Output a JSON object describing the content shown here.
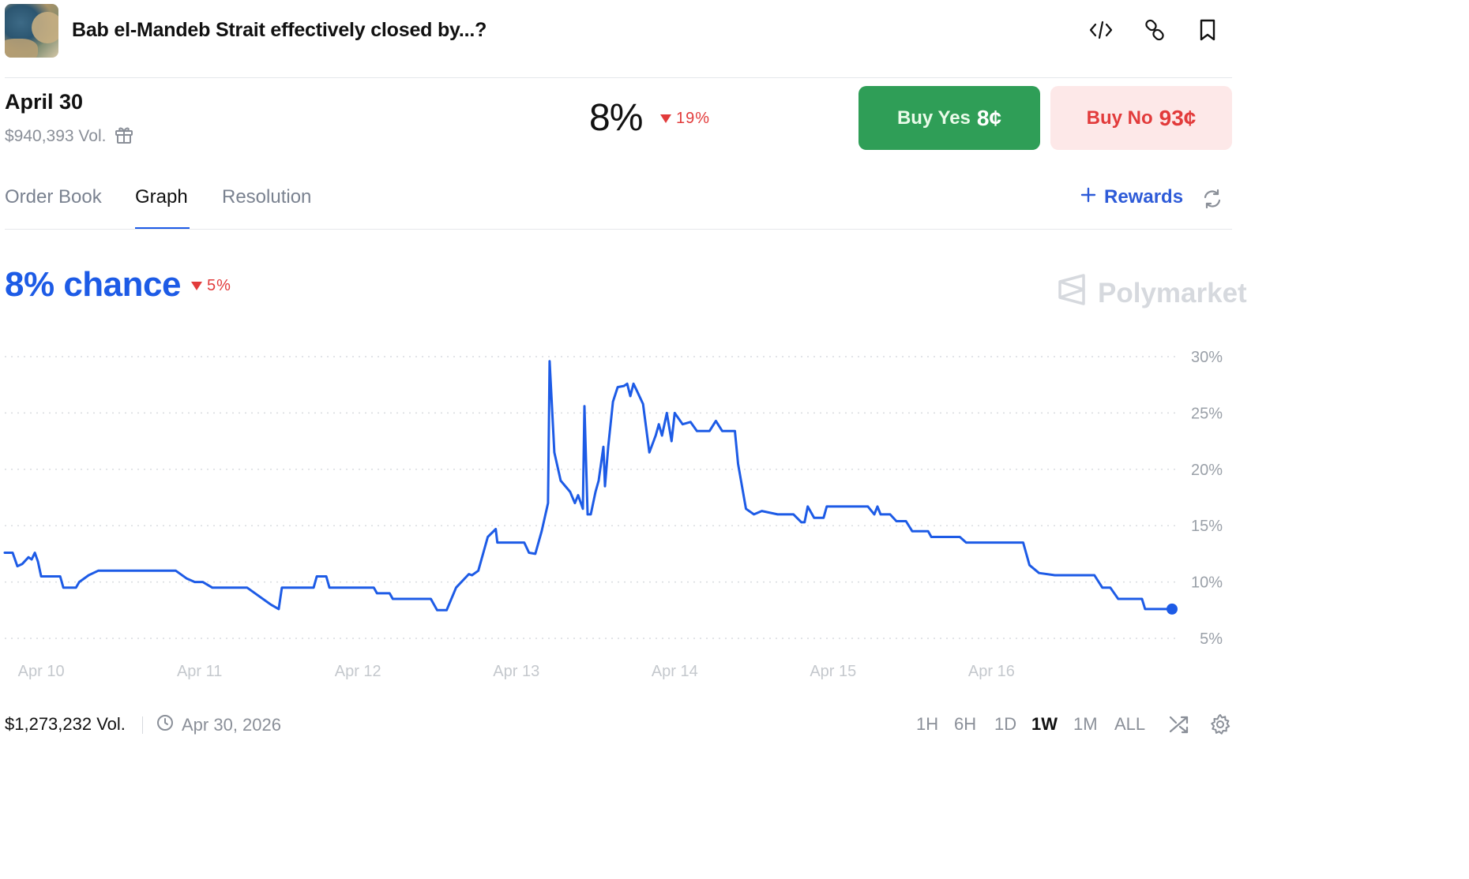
{
  "header": {
    "title": "Bab el-Mandeb Strait effectively closed by...?",
    "icons": [
      "embed-code-icon",
      "link-icon",
      "bookmark-icon"
    ]
  },
  "market": {
    "date": "April 30",
    "volume": "$940,393 Vol.",
    "probability": "8%",
    "change": "19%",
    "buy_yes_label": "Buy Yes",
    "buy_yes_price": "8¢",
    "buy_no_label": "Buy No",
    "buy_no_price": "93¢"
  },
  "tabs": [
    {
      "label": "Order Book",
      "active": false
    },
    {
      "label": "Graph",
      "active": true
    },
    {
      "label": "Resolution",
      "active": false
    }
  ],
  "rewards_label": "Rewards",
  "chart_header": {
    "chance": "8% chance",
    "change": "5%",
    "brand": "Polymarket"
  },
  "colors": {
    "accent": "#1d5be6",
    "yes": "#2f9e57",
    "no_bg": "#fde8e8",
    "down": "#e23b3b"
  },
  "chart_data": {
    "type": "line",
    "title": "",
    "xlabel": "",
    "ylabel": "",
    "yticks": [
      "30%",
      "25%",
      "20%",
      "15%",
      "10%",
      "5%"
    ],
    "ytick_values": [
      30,
      25,
      20,
      15,
      10,
      5
    ],
    "xticks": [
      "Apr 10",
      "Apr 11",
      "Apr 12",
      "Apr 13",
      "Apr 14",
      "Apr 15",
      "Apr 16"
    ],
    "xtick_values": [
      10,
      11,
      12,
      13,
      14,
      15,
      16
    ],
    "ylim": [
      4,
      30.5
    ],
    "xlim": [
      9.77,
      17.17
    ],
    "grid": true,
    "series": [
      {
        "points": [
          [
            9.77,
            12.6
          ],
          [
            9.82,
            12.6
          ],
          [
            9.85,
            11.4
          ],
          [
            9.88,
            11.6
          ],
          [
            9.92,
            12.2
          ],
          [
            9.94,
            12.0
          ],
          [
            9.96,
            12.6
          ],
          [
            9.98,
            11.8
          ],
          [
            10.0,
            10.5
          ],
          [
            10.1,
            10.5
          ],
          [
            10.12,
            10.5
          ],
          [
            10.14,
            9.5
          ],
          [
            10.22,
            9.5
          ],
          [
            10.24,
            10.0
          ],
          [
            10.3,
            10.6
          ],
          [
            10.36,
            11.0
          ],
          [
            10.45,
            11.0
          ],
          [
            10.6,
            11.0
          ],
          [
            10.8,
            11.0
          ],
          [
            10.85,
            11.0
          ],
          [
            10.92,
            10.3
          ],
          [
            10.97,
            10.0
          ],
          [
            11.02,
            10.0
          ],
          [
            11.08,
            9.5
          ],
          [
            11.3,
            9.5
          ],
          [
            11.45,
            8.0
          ],
          [
            11.5,
            7.6
          ],
          [
            11.52,
            9.5
          ],
          [
            11.72,
            9.5
          ],
          [
            11.74,
            10.5
          ],
          [
            11.8,
            10.5
          ],
          [
            11.82,
            9.5
          ],
          [
            12.1,
            9.5
          ],
          [
            12.12,
            9.0
          ],
          [
            12.2,
            9.0
          ],
          [
            12.22,
            8.5
          ],
          [
            12.46,
            8.5
          ],
          [
            12.48,
            8.0
          ],
          [
            12.5,
            7.5
          ],
          [
            12.56,
            7.5
          ],
          [
            12.62,
            9.5
          ],
          [
            12.7,
            10.7
          ],
          [
            12.72,
            10.6
          ],
          [
            12.76,
            11.0
          ],
          [
            12.82,
            14.0
          ],
          [
            12.87,
            14.7
          ],
          [
            12.88,
            13.5
          ],
          [
            13.05,
            13.5
          ],
          [
            13.08,
            12.6
          ],
          [
            13.12,
            12.5
          ],
          [
            13.16,
            14.5
          ],
          [
            13.2,
            17.0
          ],
          [
            13.21,
            29.6
          ],
          [
            13.24,
            21.5
          ],
          [
            13.28,
            19.0
          ],
          [
            13.34,
            18.0
          ],
          [
            13.37,
            17.0
          ],
          [
            13.39,
            17.7
          ],
          [
            13.42,
            16.5
          ],
          [
            13.43,
            25.6
          ],
          [
            13.45,
            16.0
          ],
          [
            13.47,
            16.0
          ],
          [
            13.5,
            18.0
          ],
          [
            13.52,
            19.0
          ],
          [
            13.55,
            22.0
          ],
          [
            13.56,
            18.5
          ],
          [
            13.58,
            22.0
          ],
          [
            13.61,
            26.0
          ],
          [
            13.64,
            27.3
          ],
          [
            13.68,
            27.4
          ],
          [
            13.7,
            27.6
          ],
          [
            13.72,
            26.5
          ],
          [
            13.74,
            27.6
          ],
          [
            13.76,
            27.0
          ],
          [
            13.8,
            25.8
          ],
          [
            13.84,
            21.5
          ],
          [
            13.88,
            23.0
          ],
          [
            13.9,
            24.0
          ],
          [
            13.92,
            23.0
          ],
          [
            13.95,
            25.0
          ],
          [
            13.98,
            22.5
          ],
          [
            14.0,
            25.0
          ],
          [
            14.05,
            24.0
          ],
          [
            14.1,
            24.2
          ],
          [
            14.14,
            23.4
          ],
          [
            14.22,
            23.4
          ],
          [
            14.26,
            24.3
          ],
          [
            14.3,
            23.4
          ],
          [
            14.38,
            23.4
          ],
          [
            14.4,
            20.5
          ],
          [
            14.45,
            16.5
          ],
          [
            14.5,
            16.0
          ],
          [
            14.55,
            16.3
          ],
          [
            14.65,
            16.0
          ],
          [
            14.75,
            16.0
          ],
          [
            14.8,
            15.3
          ],
          [
            14.82,
            15.3
          ],
          [
            14.84,
            16.7
          ],
          [
            14.88,
            15.7
          ],
          [
            14.94,
            15.7
          ],
          [
            14.96,
            16.7
          ],
          [
            15.22,
            16.7
          ],
          [
            15.26,
            16.0
          ],
          [
            15.28,
            16.7
          ],
          [
            15.3,
            16.0
          ],
          [
            15.36,
            16.0
          ],
          [
            15.4,
            15.4
          ],
          [
            15.46,
            15.4
          ],
          [
            15.5,
            14.5
          ],
          [
            15.6,
            14.5
          ],
          [
            15.62,
            14.0
          ],
          [
            15.8,
            14.0
          ],
          [
            15.84,
            13.5
          ],
          [
            16.0,
            13.5
          ],
          [
            16.2,
            13.5
          ],
          [
            16.24,
            11.5
          ],
          [
            16.3,
            10.8
          ],
          [
            16.4,
            10.6
          ],
          [
            16.6,
            10.6
          ],
          [
            16.65,
            10.6
          ],
          [
            16.7,
            9.5
          ],
          [
            16.75,
            9.5
          ],
          [
            16.8,
            8.5
          ],
          [
            16.95,
            8.5
          ],
          [
            16.97,
            7.6
          ],
          [
            17.0,
            7.6
          ],
          [
            17.14,
            7.6
          ]
        ]
      }
    ]
  },
  "footer": {
    "volume": "$1,273,232 Vol.",
    "end_date": "Apr 30, 2026",
    "ranges": [
      "1H",
      "6H",
      "1D",
      "1W",
      "1M",
      "ALL"
    ],
    "active_range": "1W"
  }
}
